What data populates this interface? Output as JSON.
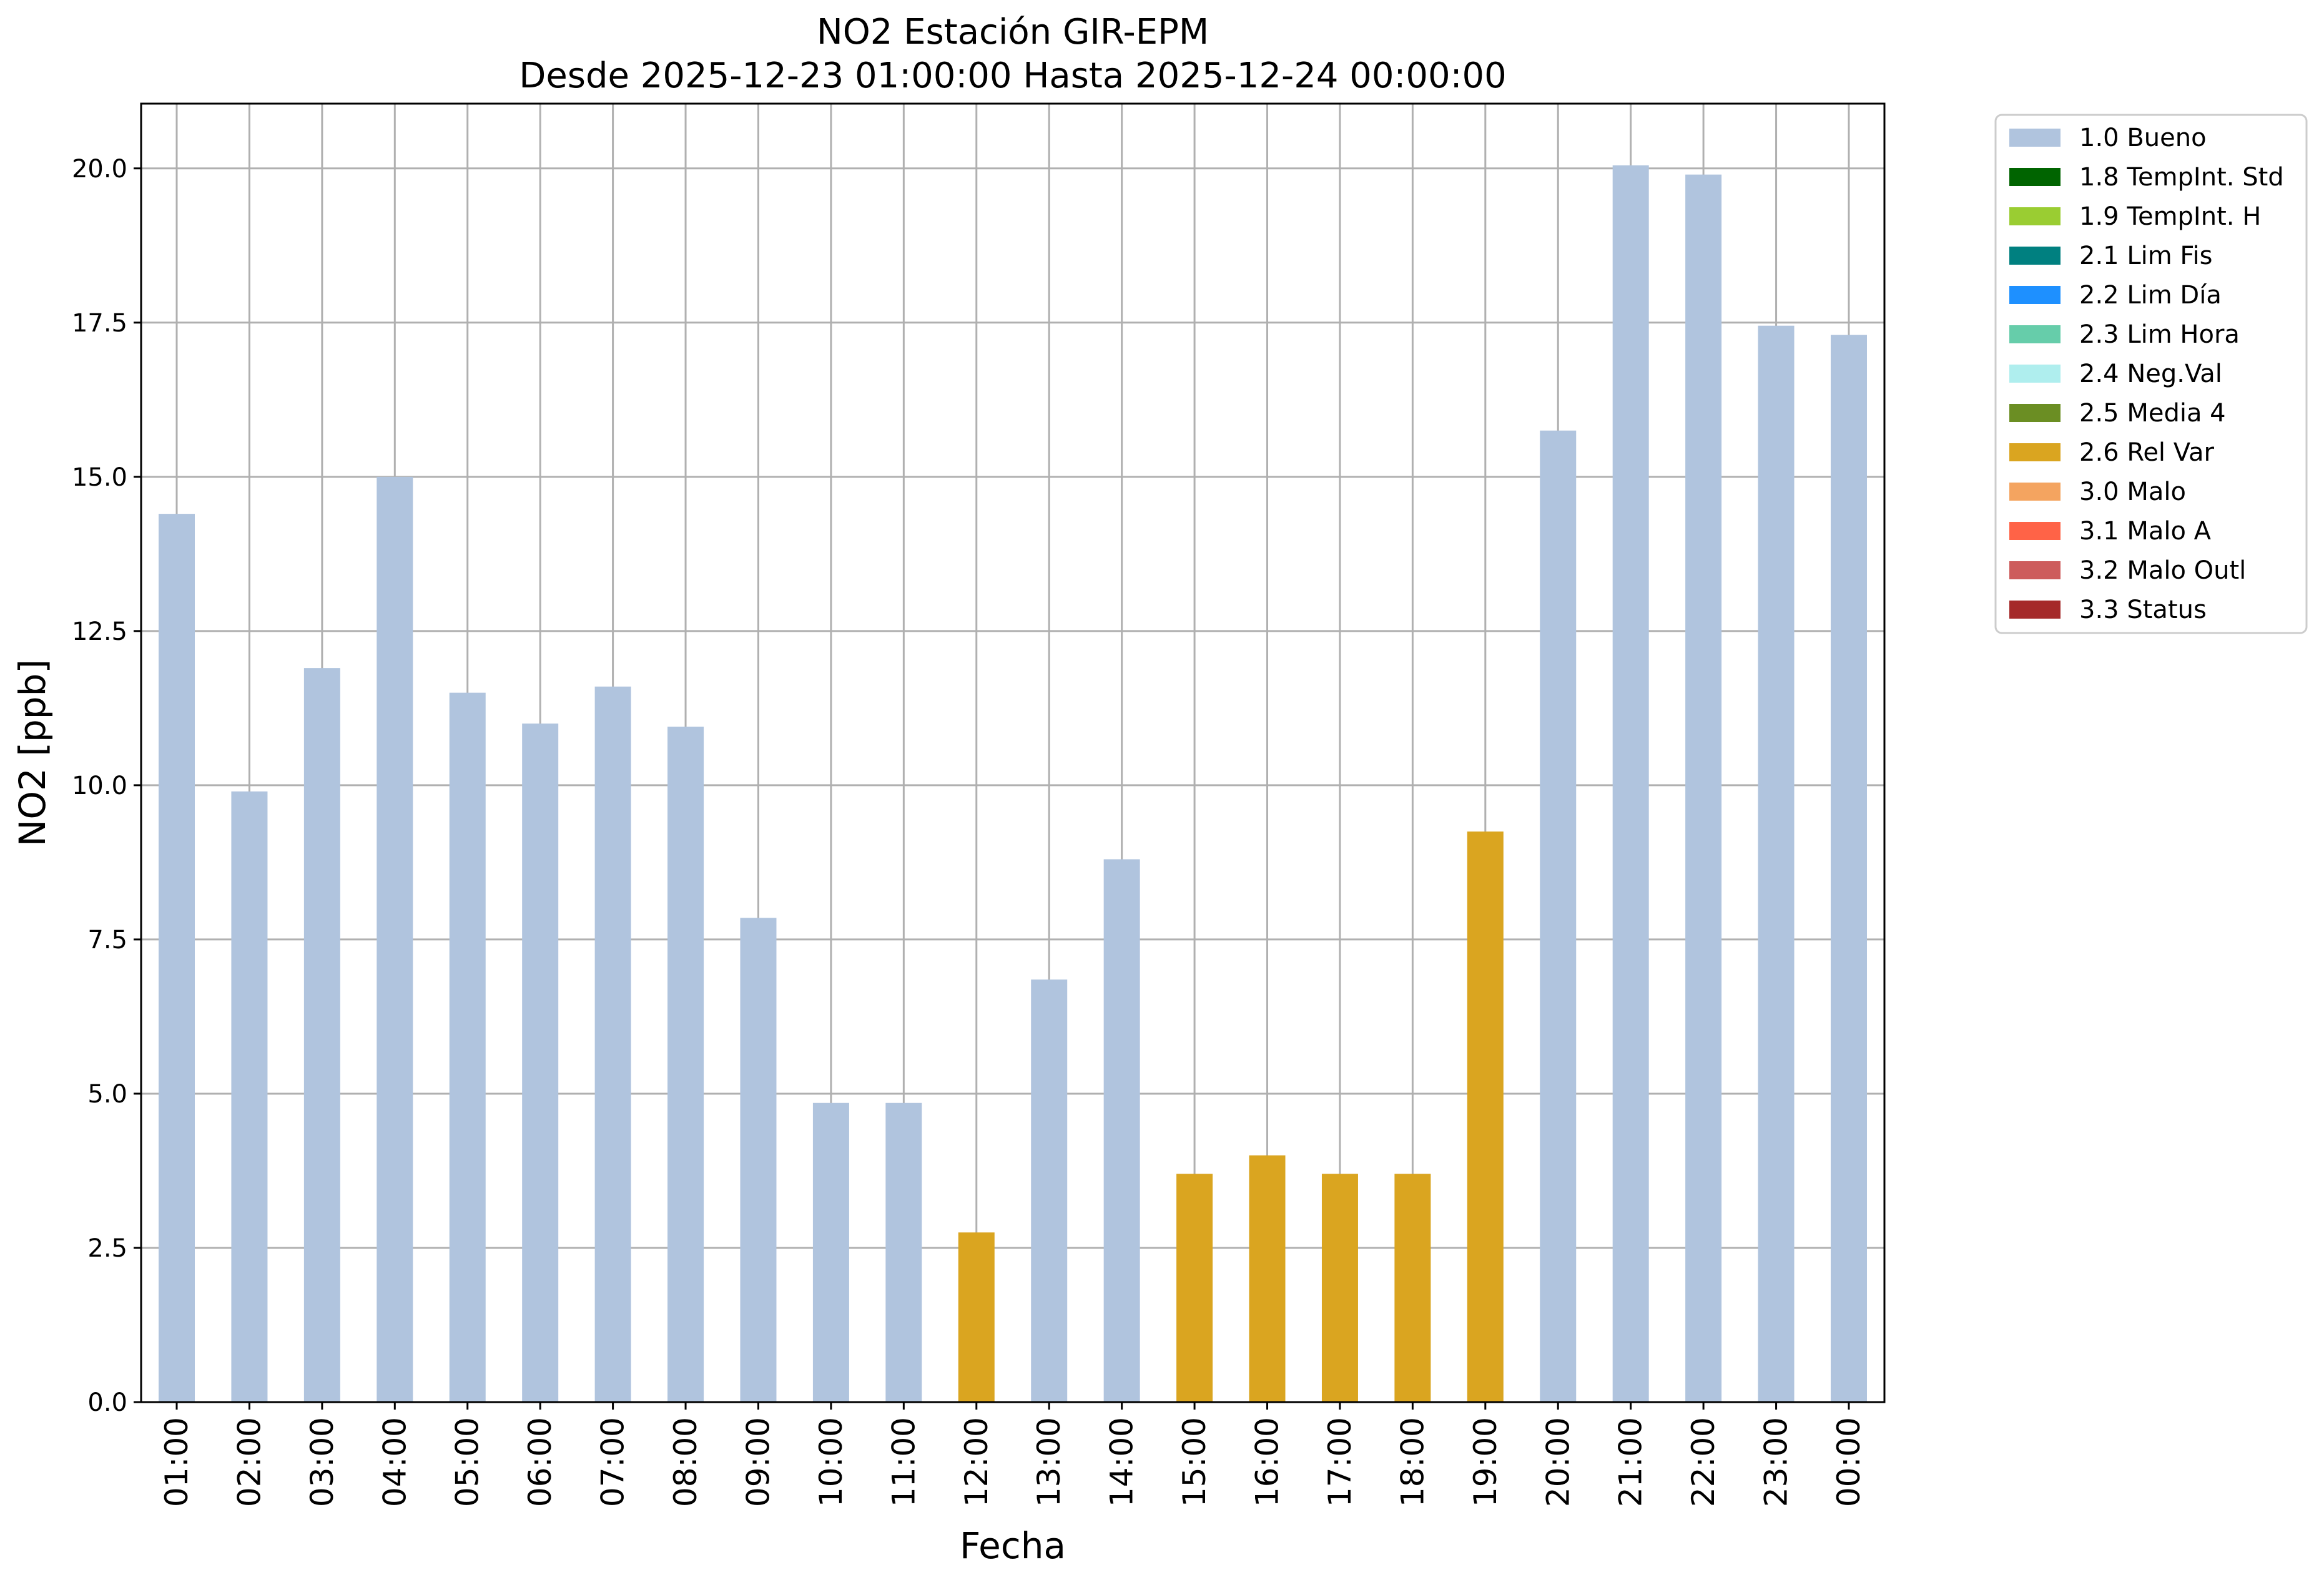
{
  "chart_data": {
    "type": "bar",
    "title": "NO2 Estación GIR-EPM",
    "subtitle": "Desde 2025-12-23 01:00:00 Hasta 2025-12-24 00:00:00",
    "xlabel": "Fecha",
    "ylabel": "NO2 [ppb]",
    "ylim": [
      0,
      21.05
    ],
    "yticks": [
      "0.0",
      "2.5",
      "5.0",
      "7.5",
      "10.0",
      "12.5",
      "15.0",
      "17.5",
      "20.0"
    ],
    "grid": true,
    "legend_position": "outside-right-top",
    "categories": [
      "01:00",
      "02:00",
      "03:00",
      "04:00",
      "05:00",
      "06:00",
      "07:00",
      "08:00",
      "09:00",
      "10:00",
      "11:00",
      "12:00",
      "13:00",
      "14:00",
      "15:00",
      "16:00",
      "17:00",
      "18:00",
      "19:00",
      "20:00",
      "21:00",
      "22:00",
      "23:00",
      "00:00"
    ],
    "values": [
      14.4,
      9.9,
      11.9,
      15.0,
      11.5,
      11.0,
      11.6,
      10.95,
      7.85,
      4.85,
      4.85,
      2.75,
      6.85,
      8.8,
      3.7,
      4.0,
      3.7,
      3.7,
      9.25,
      15.75,
      20.05,
      19.9,
      17.45,
      17.3
    ],
    "flags": [
      "1.0 Bueno",
      "1.0 Bueno",
      "1.0 Bueno",
      "1.0 Bueno",
      "1.0 Bueno",
      "1.0 Bueno",
      "1.0 Bueno",
      "1.0 Bueno",
      "1.0 Bueno",
      "1.0 Bueno",
      "1.0 Bueno",
      "2.6 Rel Var",
      "1.0 Bueno",
      "1.0 Bueno",
      "2.6 Rel Var",
      "2.6 Rel Var",
      "2.6 Rel Var",
      "2.6 Rel Var",
      "2.6 Rel Var",
      "1.0 Bueno",
      "1.0 Bueno",
      "1.0 Bueno",
      "1.0 Bueno",
      "1.0 Bueno"
    ],
    "legend": [
      {
        "label": "1.0 Bueno",
        "color": "#b0c4de"
      },
      {
        "label": "1.8 TempInt. Std",
        "color": "#006400"
      },
      {
        "label": "1.9 TempInt. H",
        "color": "#9acd32"
      },
      {
        "label": "2.1 Lim Fis",
        "color": "#008080"
      },
      {
        "label": "2.2 Lim Día",
        "color": "#1e90ff"
      },
      {
        "label": "2.3 Lim Hora",
        "color": "#66cdaa"
      },
      {
        "label": "2.4 Neg.Val",
        "color": "#afeeee"
      },
      {
        "label": "2.5 Media 4",
        "color": "#6b8e23"
      },
      {
        "label": "2.6 Rel Var",
        "color": "#daa520"
      },
      {
        "label": "3.0 Malo",
        "color": "#f4a460"
      },
      {
        "label": "3.1 Malo A",
        "color": "#ff6347"
      },
      {
        "label": "3.2 Malo Outl",
        "color": "#cd5c5c"
      },
      {
        "label": "3.3 Status",
        "color": "#a52a2a"
      }
    ],
    "colors": {
      "grid": "#b0b0b0",
      "axis": "#000000"
    }
  }
}
